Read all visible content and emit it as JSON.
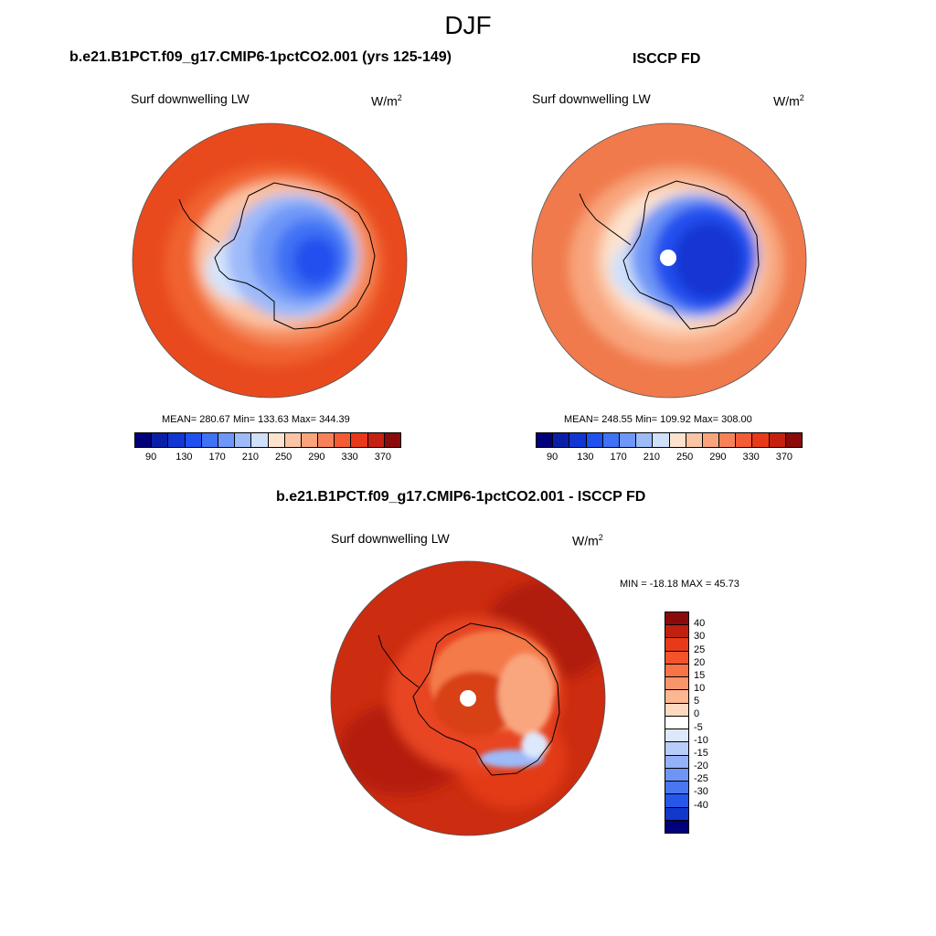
{
  "season": "DJF",
  "top_left": {
    "case_title": "b.e21.B1PCT.f09_g17.CMIP6-1pctCO2.001 (yrs 125-149)",
    "var_label": "Surf downwelling LW",
    "units": "W/m",
    "units_sup": "2",
    "stats": "MEAN= 280.67  Min= 133.63  Max= 344.39"
  },
  "top_right": {
    "case_title": "ISCCP FD",
    "var_label": "Surf downwelling LW",
    "units": "W/m",
    "units_sup": "2",
    "stats": "MEAN= 248.55  Min= 109.92  Max= 308.00"
  },
  "bottom": {
    "case_title": "b.e21.B1PCT.f09_g17.CMIP6-1pctCO2.001 - ISCCP FD",
    "var_label": "Surf downwelling LW",
    "units": "W/m",
    "units_sup": "2",
    "stats": "MIN = -18.18 MAX =  45.73"
  },
  "abs_colorbar": {
    "colors": [
      "#00007a",
      "#0a1fa8",
      "#1236d2",
      "#2050ee",
      "#3f72f5",
      "#6e97f7",
      "#9dbaf9",
      "#cfe0fb",
      "#fde3cf",
      "#fbc4a4",
      "#f9a47c",
      "#f7825a",
      "#f35c34",
      "#e8391a",
      "#c42110",
      "#8b0a0a"
    ],
    "ticks": [
      "90",
      "130",
      "170",
      "210",
      "250",
      "290",
      "330",
      "370"
    ]
  },
  "diff_colorbar": {
    "colors": [
      "#8b0a0a",
      "#c02010",
      "#e8391a",
      "#f2532a",
      "#f87347",
      "#f9946b",
      "#fbb692",
      "#fdd9bf",
      "#ffffff",
      "#dde8fc",
      "#b8cdfa",
      "#93b2f7",
      "#6e94f5",
      "#4a76f2",
      "#2657ea",
      "#1038cc",
      "#00007a"
    ],
    "ticks": [
      "40",
      "30",
      "25",
      "20",
      "15",
      "10",
      "5",
      "0",
      "-5",
      "-10",
      "-15",
      "-20",
      "-25",
      "-30",
      "-40"
    ]
  }
}
